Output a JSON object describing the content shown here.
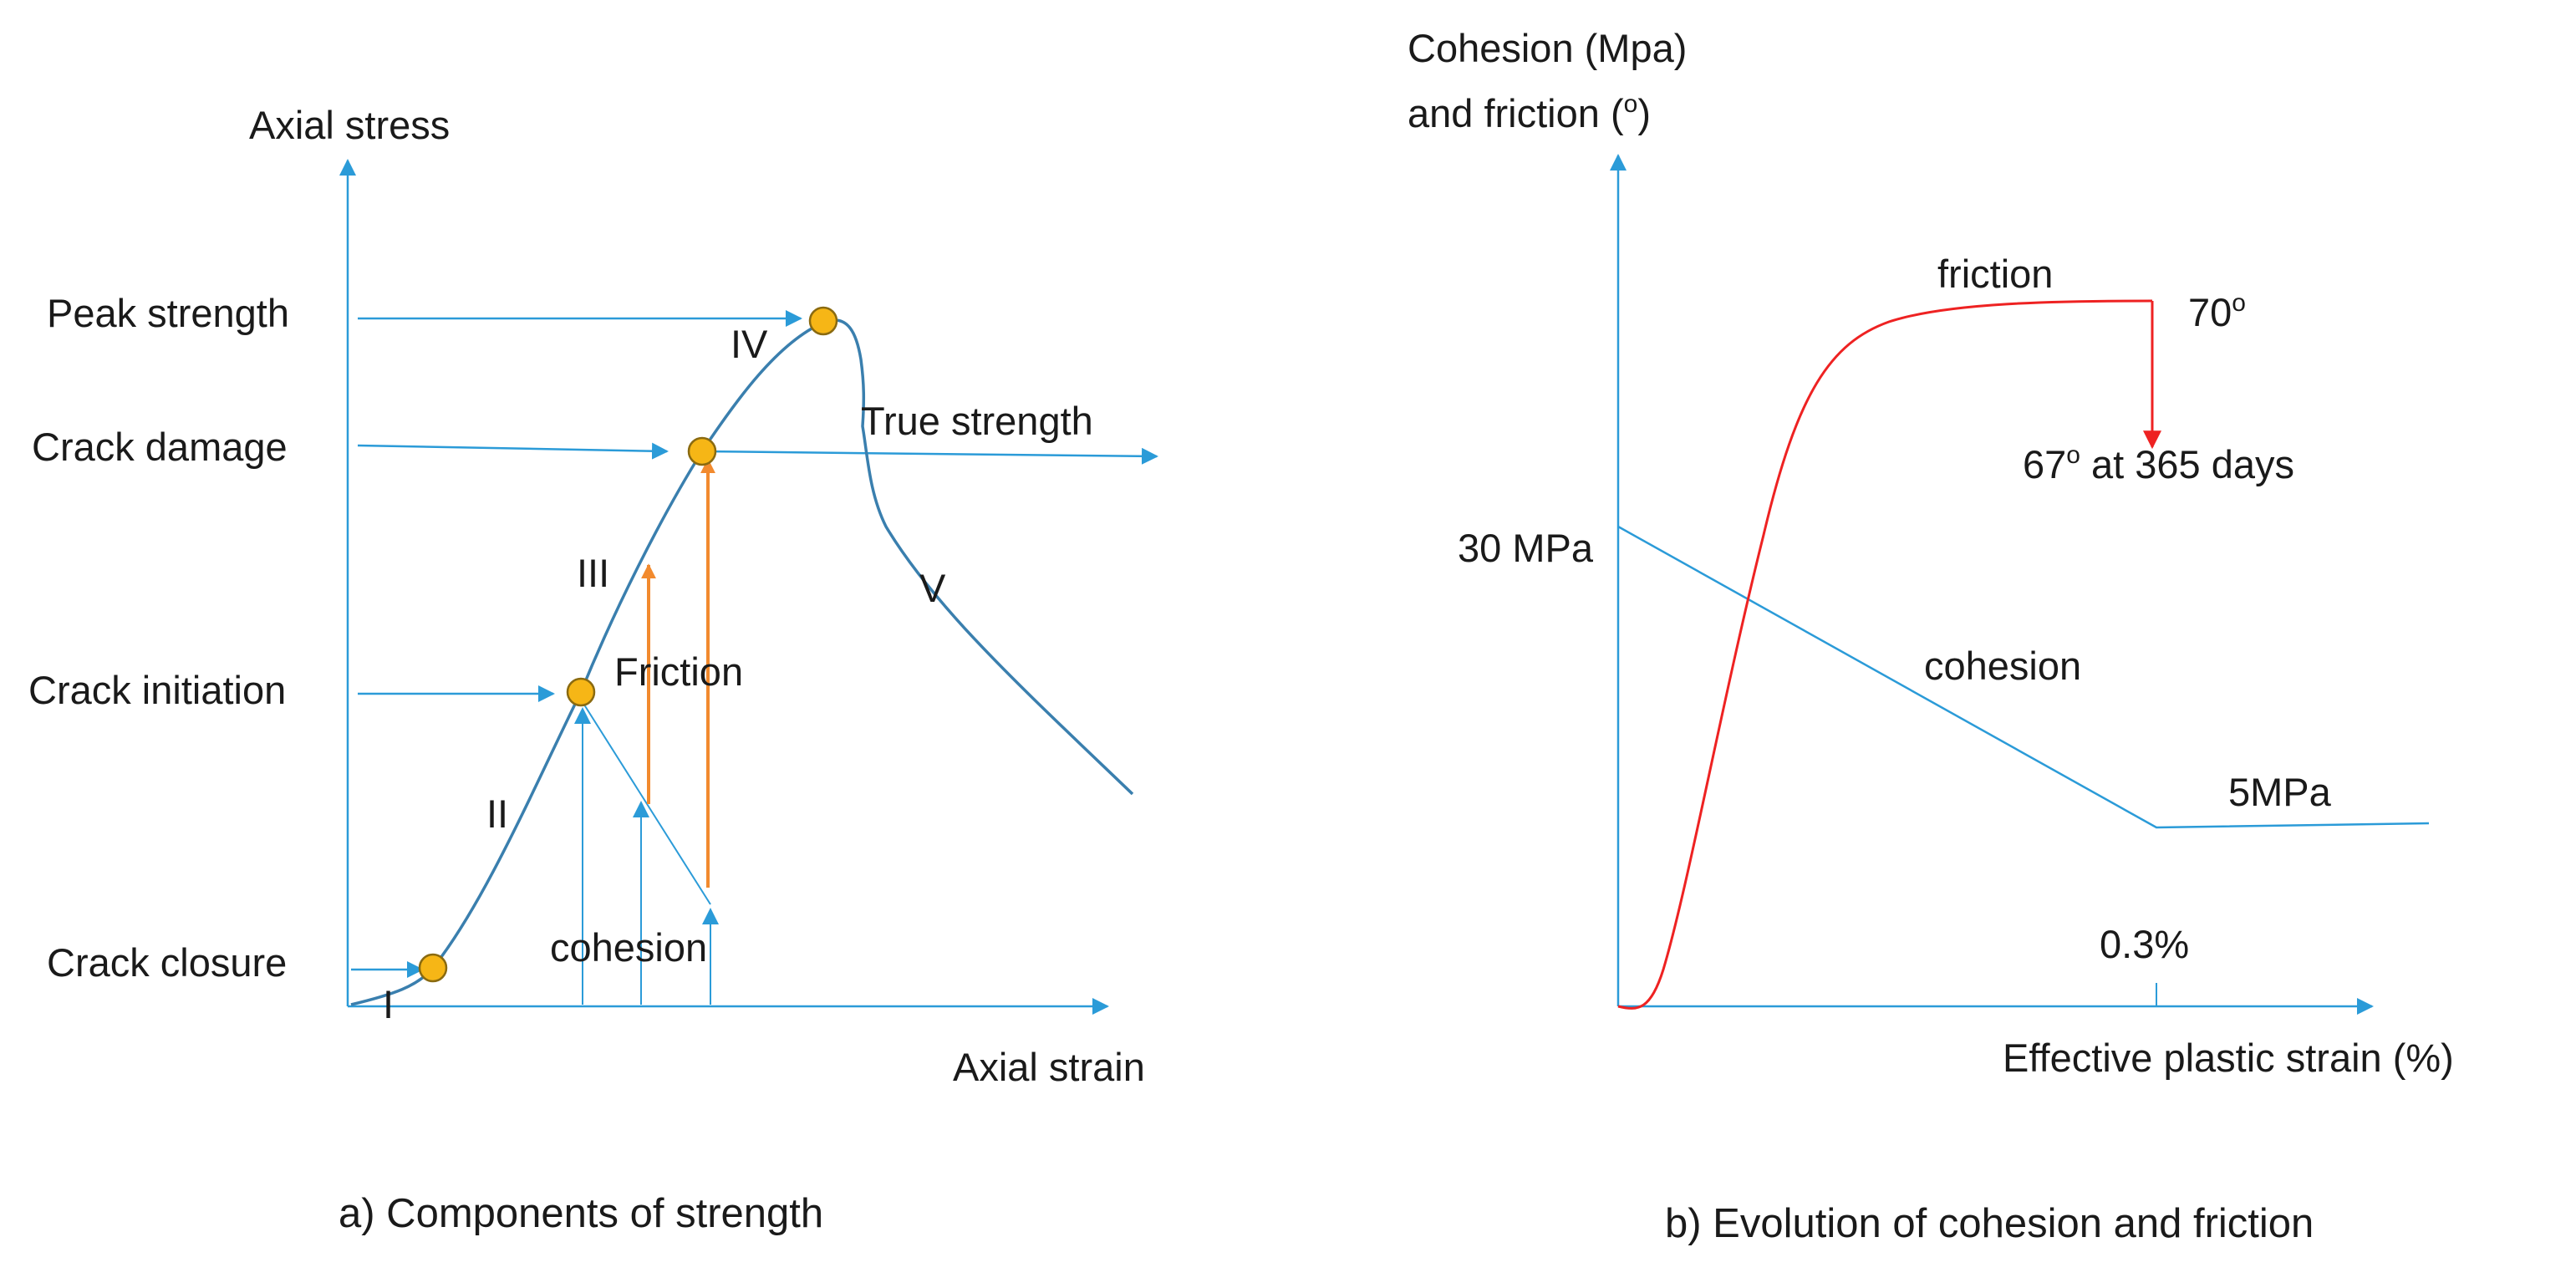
{
  "colors": {
    "axis": "#2b9bd8",
    "curve": "#3a7fae",
    "marker_fill": "#f6b616",
    "marker_stroke": "#8a6a10",
    "orange_arrow": "#f28a2e",
    "red": "#ee2222",
    "text": "#1a1a1a"
  },
  "panel_a": {
    "caption": "a) Components of strength",
    "y_axis_label": "Axial stress",
    "x_axis_label": "Axial strain",
    "levels": {
      "peak_strength": "Peak strength",
      "crack_damage": "Crack damage",
      "crack_initiation": "Crack initiation",
      "crack_closure": "Crack closure"
    },
    "stages": [
      "I",
      "II",
      "III",
      "IV",
      "V"
    ],
    "true_strength": "True strength",
    "friction": "Friction",
    "cohesion": "cohesion"
  },
  "panel_b": {
    "caption": "b) Evolution of cohesion and friction",
    "y_axis_label_line1": "Cohesion (Mpa)",
    "y_axis_label_line2": "and friction (",
    "y_axis_label_deg": "o",
    "y_axis_label_close": ")",
    "x_axis_label": "Effective plastic strain (%)",
    "friction_label": "friction",
    "friction_peak_value": "70",
    "friction_peak_unit": "o",
    "friction_aged_value": "67",
    "friction_aged_unit": "o",
    "friction_aged_suffix": " at 365 days",
    "cohesion_label": "cohesion",
    "cohesion_initial": "30 MPa",
    "cohesion_residual": "5MPa",
    "strain_tick": "0.3%"
  }
}
